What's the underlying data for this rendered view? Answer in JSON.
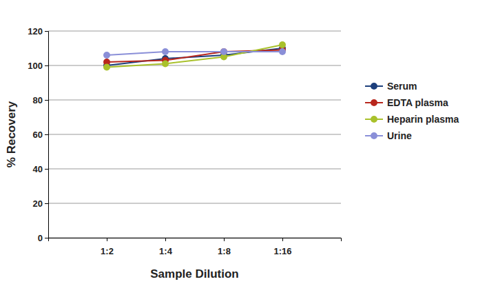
{
  "chart_data": {
    "type": "line",
    "x_label": "Sample Dilution",
    "y_label": "% Recovery",
    "categories": [
      "1:2",
      "1:4",
      "1:8",
      "1:16"
    ],
    "series": [
      {
        "name": "Serum",
        "color": "#1c3f7c",
        "values": [
          100,
          104,
          106,
          110
        ]
      },
      {
        "name": "EDTA plasma",
        "color": "#b8271d",
        "values": [
          102,
          103,
          108,
          109
        ]
      },
      {
        "name": "Heparin plasma",
        "color": "#a9c12b",
        "values": [
          99,
          101,
          105,
          112
        ]
      },
      {
        "name": "Urine",
        "color": "#8a8fd8",
        "values": [
          106,
          108,
          108,
          108
        ]
      }
    ],
    "ylim": [
      0,
      120
    ],
    "yticks": [
      0,
      20,
      40,
      60,
      80,
      100,
      120
    ],
    "grid": true,
    "legend": "right",
    "marker": "circle"
  }
}
